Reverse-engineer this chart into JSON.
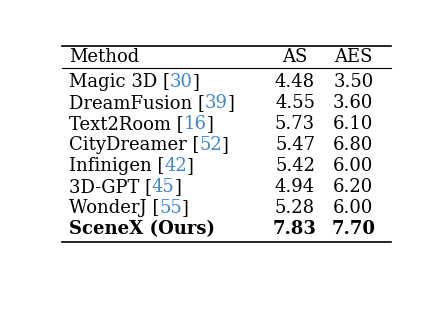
{
  "columns": [
    "Method",
    "AS",
    "AES"
  ],
  "rows": [
    {
      "method": "Magic 3D",
      "ref": "30",
      "as_val": "4.48",
      "aes_val": "3.50",
      "bold": false
    },
    {
      "method": "DreamFusion",
      "ref": "39",
      "as_val": "4.55",
      "aes_val": "3.60",
      "bold": false
    },
    {
      "method": "Text2Room",
      "ref": "16",
      "as_val": "5.73",
      "aes_val": "6.10",
      "bold": false
    },
    {
      "method": "CityDreamer",
      "ref": "52",
      "as_val": "5.47",
      "aes_val": "6.80",
      "bold": false
    },
    {
      "method": "Infinigen",
      "ref": "42",
      "as_val": "5.42",
      "aes_val": "6.00",
      "bold": false
    },
    {
      "method": "3D-GPT",
      "ref": "45",
      "as_val": "4.94",
      "aes_val": "6.20",
      "bold": false
    },
    {
      "method": "WonderJ",
      "ref": "55",
      "as_val": "5.28",
      "aes_val": "6.00",
      "bold": false
    },
    {
      "method": "SceneΧ (Ours)",
      "ref": null,
      "as_val": "7.83",
      "aes_val": "7.70",
      "bold": true
    }
  ],
  "text_color": "#000000",
  "ref_color": "#4488cc",
  "background_color": "#ffffff",
  "header_fontsize": 13,
  "row_fontsize": 13
}
